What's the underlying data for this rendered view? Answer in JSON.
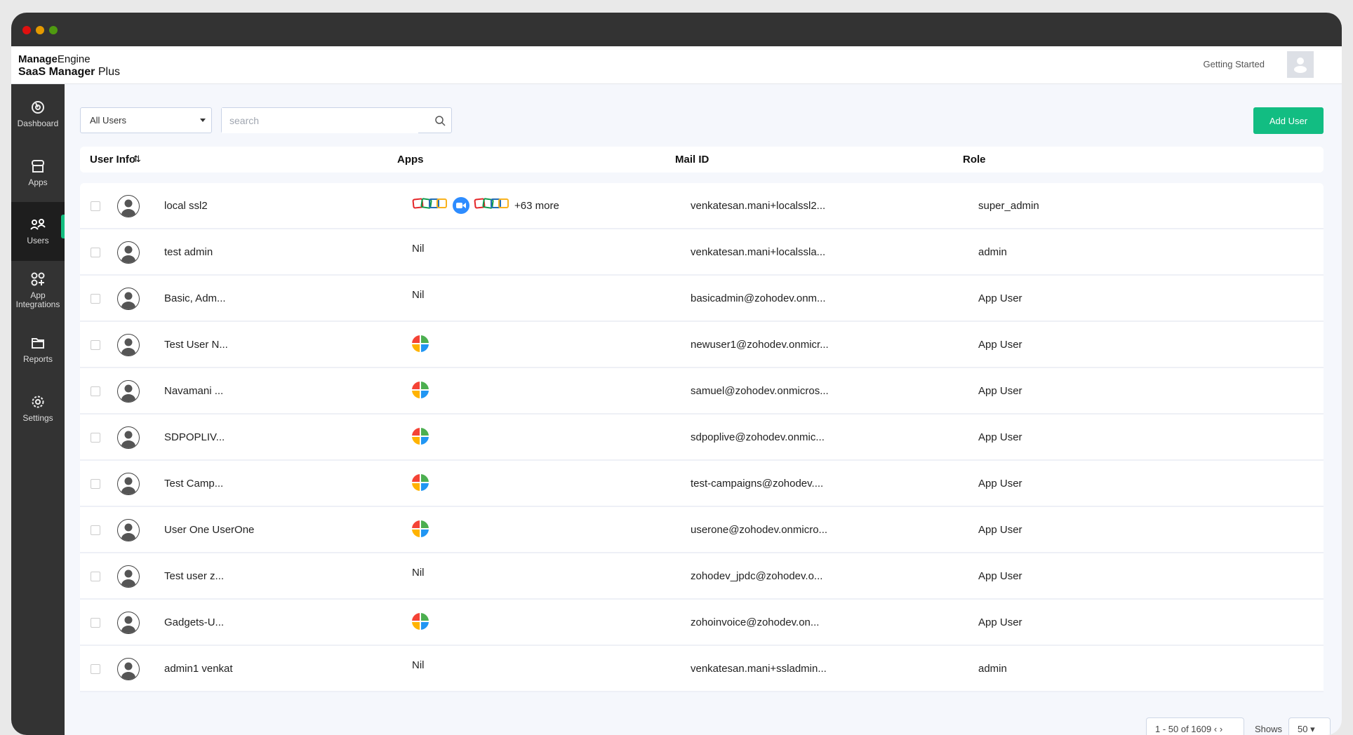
{
  "window": {
    "controls": [
      "close",
      "minimize",
      "maximize"
    ]
  },
  "header": {
    "brand_line1_bold": "Manage",
    "brand_line1": "Engine",
    "brand_line2_bold": "SaaS Manager",
    "brand_line2": " Plus",
    "getting_started": "Getting Started"
  },
  "sidebar": {
    "items": [
      {
        "label": "Dashboard",
        "icon": "dashboard-icon"
      },
      {
        "label": "Apps",
        "icon": "store-icon"
      },
      {
        "label": "Users",
        "icon": "users-icon",
        "active": true
      },
      {
        "label": "App Integrations",
        "icon": "app-integrations-icon"
      },
      {
        "label": "Reports",
        "icon": "folder-icon"
      },
      {
        "label": "Settings",
        "icon": "gear-icon"
      }
    ]
  },
  "toolbar": {
    "filter_value": "All Users",
    "search_placeholder": "search",
    "add_user_label": "Add User"
  },
  "table": {
    "columns": [
      "User Info",
      "Apps",
      "Mail ID",
      "Role"
    ],
    "rows": [
      {
        "name": "local ssl2",
        "apps": [
          "zoho",
          "zoom",
          "zoho"
        ],
        "more": "+63 more",
        "mail": "venkatesan.mani+localssl2...",
        "role": "super_admin"
      },
      {
        "name": "test admin",
        "apps_text": "Nil",
        "mail": "venkatesan.mani+localssla...",
        "role": "admin"
      },
      {
        "name": "Basic, Adm...",
        "apps_text": "Nil",
        "mail": "basicadmin@zohodev.onm...",
        "role": "App User"
      },
      {
        "name": "Test User N...",
        "apps": [
          "microsoft"
        ],
        "mail": "newuser1@zohodev.onmicr...",
        "role": "App User"
      },
      {
        "name": "Navamani ...",
        "apps": [
          "microsoft"
        ],
        "mail": "samuel@zohodev.onmicros...",
        "role": "App User"
      },
      {
        "name": "SDPOPLIV...",
        "apps": [
          "microsoft"
        ],
        "mail": "sdpoplive@zohodev.onmic...",
        "role": "App User"
      },
      {
        "name": "Test Camp...",
        "apps": [
          "microsoft"
        ],
        "mail": "test-campaigns@zohodev....",
        "role": "App User"
      },
      {
        "name": "User One UserOne",
        "apps": [
          "microsoft"
        ],
        "mail": "userone@zohodev.onmicro...",
        "role": "App User"
      },
      {
        "name": "Test user z...",
        "apps_text": "Nil",
        "mail": "zohodev_jpdc@zohodev.o...",
        "role": "App User"
      },
      {
        "name": "Gadgets-U...",
        "apps": [
          "microsoft"
        ],
        "mail": "zohoinvoice@zohodev.on...",
        "role": "App User"
      },
      {
        "name": "admin1 venkat",
        "apps_text": "Nil",
        "mail": "venkatesan.mani+ssladmin...",
        "role": "admin"
      }
    ]
  },
  "pagination": {
    "range": "1 - 50 of 1609",
    "shows_label": "Shows",
    "page_size": "50"
  },
  "colors": {
    "accent": "#12bd82",
    "sidebar": "#333333",
    "active": "#1e1e1e"
  }
}
